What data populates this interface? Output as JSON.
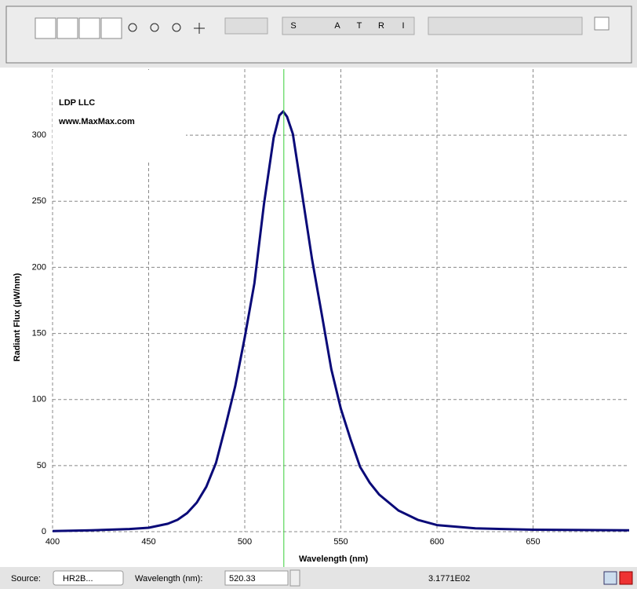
{
  "toolbar": {
    "letters": [
      "S",
      "A",
      "T",
      "R",
      "I"
    ]
  },
  "chart_data": {
    "type": "line",
    "logo": "LDP LLC",
    "logo_url": "www.MaxMax.com",
    "x_label": "Wavelength (nm)",
    "y_label": "Radiant Flux (µW/nm)",
    "x": [
      400,
      420,
      440,
      450,
      460,
      465,
      470,
      475,
      480,
      485,
      490,
      495,
      500,
      505,
      510,
      515,
      518,
      520,
      522,
      525,
      530,
      535,
      540,
      545,
      550,
      555,
      560,
      565,
      570,
      580,
      590,
      600,
      620,
      650,
      700
    ],
    "values": [
      0.5,
      1,
      2,
      3,
      6,
      9,
      14,
      22,
      34,
      52,
      80,
      110,
      147,
      188,
      248,
      298,
      315,
      318,
      314,
      301,
      254,
      206,
      165,
      123,
      93,
      70,
      49,
      37,
      28,
      16,
      9,
      5,
      2.5,
      1.5,
      1
    ],
    "color": "#0a0a78",
    "cursor": 520.33,
    "cursor_color": "#3ad03a",
    "xlim": [
      400,
      700
    ],
    "ylim": [
      0,
      350
    ],
    "xticks": [
      400,
      450,
      500,
      550,
      600,
      650
    ],
    "yticks": [
      0,
      50,
      100,
      150,
      200,
      250,
      300
    ],
    "grid": true
  },
  "status_bar": {
    "source_label": "Source:",
    "source_value": "HR2B...",
    "wavelength_label": "Wavelength (nm):",
    "reading": "3.1771E02"
  }
}
